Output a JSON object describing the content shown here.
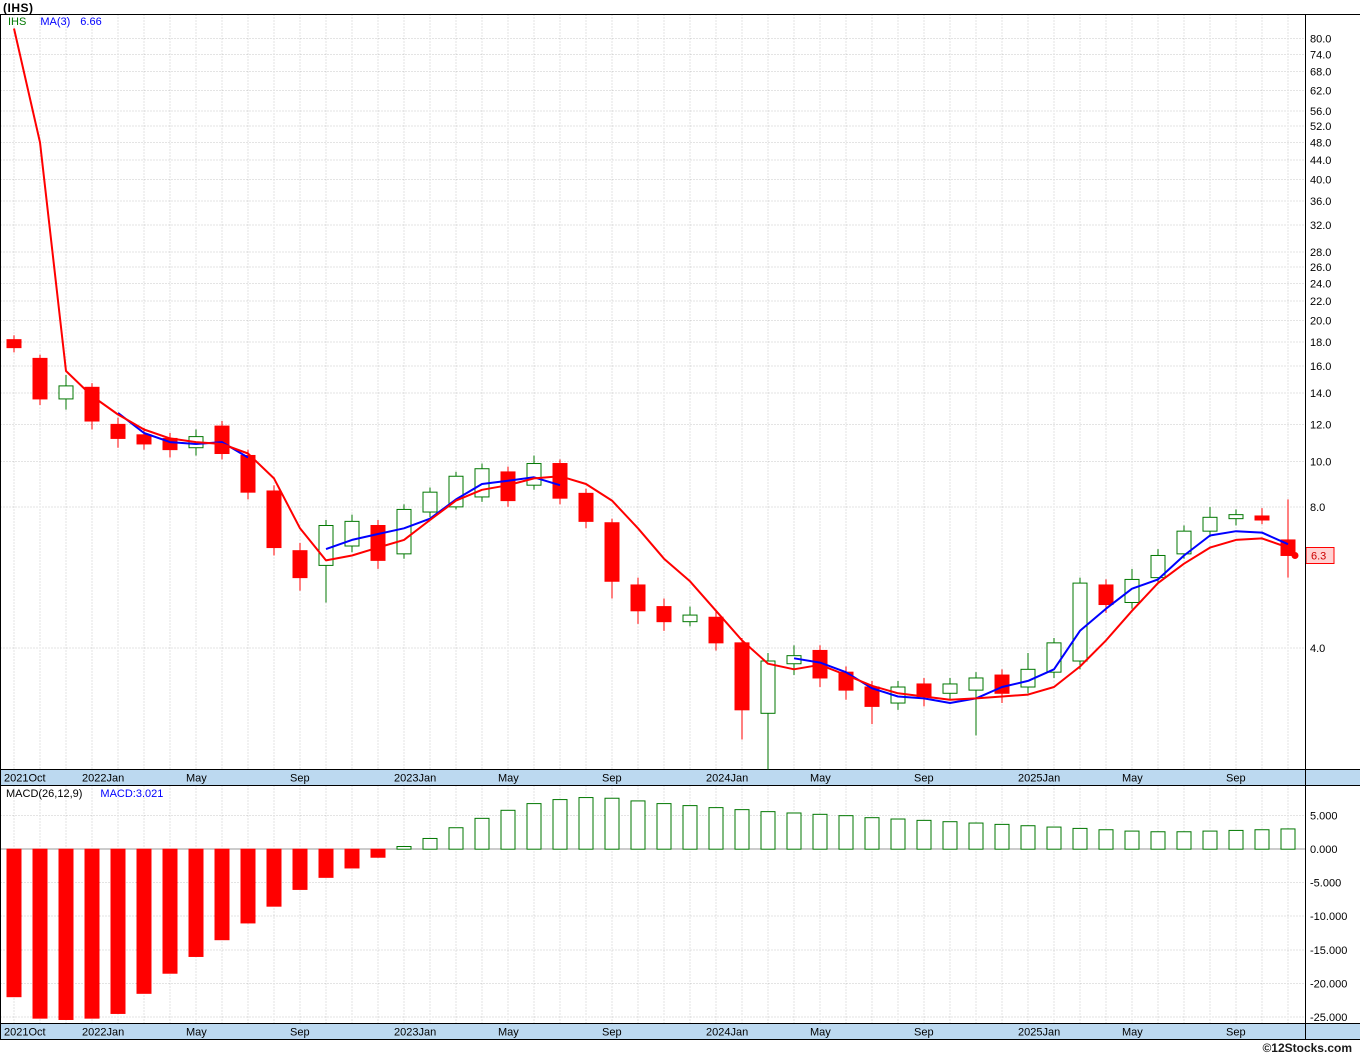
{
  "header": {
    "title": "(IHS)"
  },
  "legend": {
    "symbol": "IHS",
    "ma_label": "MA(3)",
    "ma_value": "6.66"
  },
  "sub_panel": {
    "label": "MACD(26,12,9)",
    "value": "MACD:3.021"
  },
  "watermark": "©12Stocks.com",
  "last_price_label": "6.3",
  "colors": {
    "up": "#007700",
    "down": "#ff0000",
    "ma3": "#0000ff",
    "trend": "#ff0000",
    "band": "#bcd9f0",
    "grid": "#c8c8c8",
    "zero_line": "#999999",
    "axis_text": "#000000",
    "badge_bg": "#ffd2d2",
    "badge_border": "#ff0000",
    "badge_text": "#cc0000"
  },
  "chart_data": [
    {
      "type": "candlestick",
      "title": "(IHS) monthly candlesticks with MA(3)",
      "y_scale": "log",
      "y_range": [
        2.2,
        90
      ],
      "y_axis_ticks": [
        80,
        74,
        68,
        62,
        56,
        52,
        48,
        44,
        40,
        36,
        32,
        28,
        26,
        24,
        22,
        20,
        18,
        16,
        14,
        12,
        10,
        8,
        4
      ],
      "x_tick_labels": [
        {
          "label": "2021Oct",
          "month": 0
        },
        {
          "label": "2022Jan",
          "month": 3
        },
        {
          "label": "May",
          "month": 7
        },
        {
          "label": "Sep",
          "month": 11
        },
        {
          "label": "2023Jan",
          "month": 15
        },
        {
          "label": "May",
          "month": 19
        },
        {
          "label": "Sep",
          "month": 23
        },
        {
          "label": "2024Jan",
          "month": 27
        },
        {
          "label": "May",
          "month": 31
        },
        {
          "label": "Sep",
          "month": 35
        },
        {
          "label": "2025Jan",
          "month": 39
        },
        {
          "label": "May",
          "month": 43
        },
        {
          "label": "Sep",
          "month": 47
        }
      ],
      "candles_ohlc": [
        [
          18.2,
          18.6,
          17.1,
          17.5
        ],
        [
          16.6,
          16.9,
          13.2,
          13.6
        ],
        [
          13.6,
          15.3,
          12.9,
          14.5
        ],
        [
          14.4,
          14.7,
          11.7,
          12.2
        ],
        [
          12.0,
          12.4,
          10.7,
          11.2
        ],
        [
          11.4,
          11.8,
          10.6,
          10.9
        ],
        [
          11.2,
          11.5,
          10.2,
          10.6
        ],
        [
          10.7,
          11.7,
          10.3,
          11.3
        ],
        [
          11.9,
          12.2,
          10.1,
          10.4
        ],
        [
          10.3,
          10.6,
          8.3,
          8.6
        ],
        [
          8.65,
          8.9,
          6.3,
          6.55
        ],
        [
          6.45,
          6.7,
          5.3,
          5.65
        ],
        [
          6.0,
          7.5,
          5.0,
          7.3
        ],
        [
          6.6,
          7.7,
          6.4,
          7.45
        ],
        [
          7.3,
          7.5,
          5.9,
          6.15
        ],
        [
          6.35,
          8.1,
          6.2,
          7.9
        ],
        [
          7.8,
          8.8,
          7.6,
          8.6
        ],
        [
          8.0,
          9.5,
          7.9,
          9.3
        ],
        [
          8.4,
          9.9,
          8.2,
          9.65
        ],
        [
          9.5,
          9.75,
          8.0,
          8.25
        ],
        [
          8.9,
          10.3,
          8.7,
          9.9
        ],
        [
          9.9,
          10.1,
          8.1,
          8.35
        ],
        [
          8.55,
          8.75,
          7.2,
          7.45
        ],
        [
          7.4,
          7.55,
          5.1,
          5.55
        ],
        [
          5.45,
          5.65,
          4.5,
          4.8
        ],
        [
          4.9,
          5.1,
          4.35,
          4.55
        ],
        [
          4.55,
          4.9,
          4.45,
          4.7
        ],
        [
          4.65,
          4.8,
          3.95,
          4.1
        ],
        [
          4.1,
          4.2,
          2.55,
          2.95
        ],
        [
          2.9,
          3.9,
          2.2,
          3.75
        ],
        [
          3.7,
          4.05,
          3.5,
          3.85
        ],
        [
          3.95,
          4.05,
          3.3,
          3.45
        ],
        [
          3.55,
          3.65,
          3.1,
          3.25
        ],
        [
          3.3,
          3.4,
          2.75,
          3.0
        ],
        [
          3.05,
          3.4,
          2.95,
          3.3
        ],
        [
          3.35,
          3.45,
          3.0,
          3.15
        ],
        [
          3.2,
          3.45,
          3.1,
          3.35
        ],
        [
          3.25,
          3.55,
          2.6,
          3.45
        ],
        [
          3.5,
          3.6,
          3.05,
          3.2
        ],
        [
          3.3,
          3.9,
          3.2,
          3.6
        ],
        [
          3.55,
          4.2,
          3.45,
          4.1
        ],
        [
          3.75,
          5.65,
          3.6,
          5.5
        ],
        [
          5.45,
          5.6,
          4.75,
          4.95
        ],
        [
          5.0,
          5.9,
          4.85,
          5.6
        ],
        [
          5.65,
          6.5,
          5.5,
          6.3
        ],
        [
          6.35,
          7.3,
          6.2,
          7.1
        ],
        [
          7.1,
          8.0,
          6.9,
          7.6
        ],
        [
          7.55,
          7.9,
          7.3,
          7.7
        ],
        [
          7.65,
          7.95,
          7.35,
          7.5
        ],
        [
          6.8,
          8.3,
          5.65,
          6.3
        ]
      ],
      "ma3_line": [
        null,
        null,
        null,
        null,
        12.7,
        11.5,
        11.0,
        10.9,
        11.0,
        10.2,
        null,
        null,
        6.5,
        6.8,
        7.0,
        7.2,
        7.55,
        8.3,
        8.95,
        9.1,
        9.25,
        8.9,
        null,
        null,
        null,
        null,
        null,
        null,
        null,
        null,
        3.8,
        3.72,
        3.55,
        3.28,
        3.15,
        3.12,
        3.05,
        3.12,
        3.3,
        3.4,
        3.6,
        4.35,
        4.85,
        5.35,
        5.6,
        6.3,
        6.95,
        7.1,
        7.05,
        6.66
      ],
      "trend_line": [
        84,
        48,
        15.6,
        13.8,
        12.6,
        11.7,
        11.2,
        11.0,
        10.9,
        10.4,
        9.2,
        7.2,
        6.15,
        6.3,
        6.55,
        6.8,
        7.5,
        8.25,
        8.7,
        8.9,
        9.2,
        9.3,
        8.95,
        8.25,
        7.2,
        6.2,
        5.55,
        4.8,
        4.15,
        3.7,
        3.6,
        3.68,
        3.5,
        3.32,
        3.2,
        3.15,
        3.1,
        3.12,
        3.15,
        3.18,
        3.3,
        3.65,
        4.15,
        4.8,
        5.5,
        6.05,
        6.55,
        6.8,
        6.85,
        6.55
      ],
      "last_price": 6.3
    },
    {
      "type": "bar",
      "title": "MACD(26,12,9) histogram",
      "y_range": [
        -26,
        9.5
      ],
      "y_axis_ticks": [
        5,
        0,
        -5,
        -10,
        -15,
        -20,
        -25
      ],
      "values": [
        -22,
        -25.2,
        -25.4,
        -25.2,
        -24.5,
        -21.5,
        -18.5,
        -16,
        -13.5,
        -11,
        -8.5,
        -6,
        -4.2,
        -2.8,
        -1.2,
        0.4,
        1.6,
        3.2,
        4.6,
        5.8,
        6.8,
        7.4,
        7.7,
        7.6,
        7.2,
        6.8,
        6.5,
        6.2,
        5.9,
        5.6,
        5.4,
        5.2,
        5.0,
        4.7,
        4.5,
        4.3,
        4.1,
        3.9,
        3.7,
        3.5,
        3.3,
        3.1,
        2.9,
        2.7,
        2.6,
        2.6,
        2.7,
        2.8,
        2.9,
        3.021
      ],
      "current": 3.021
    }
  ]
}
